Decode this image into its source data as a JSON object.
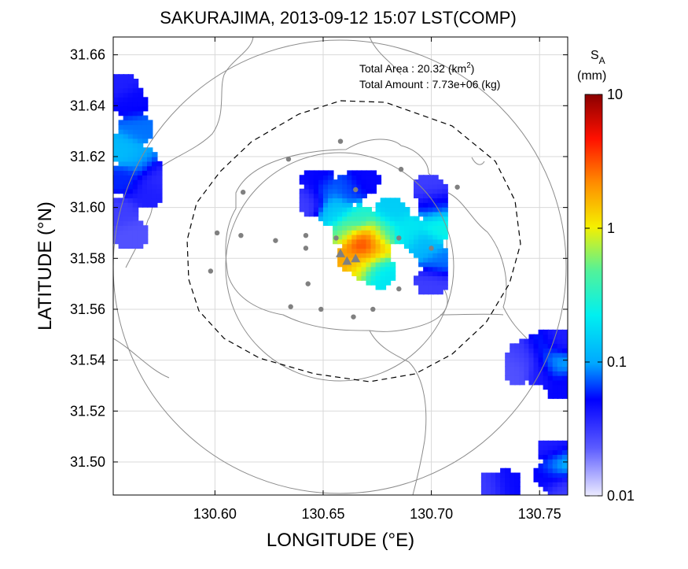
{
  "chart_data": {
    "type": "heatmap",
    "title": "SAKURAJIMA, 2013-09-12 15:07 LST(COMP)",
    "xlabel": "LONGITUDE (°E)",
    "ylabel": "LATITUDE (°N)",
    "xlim": [
      130.553,
      130.763
    ],
    "ylim": [
      31.487,
      31.667
    ],
    "xticks": [
      130.6,
      130.65,
      130.7,
      130.75
    ],
    "xtick_labels": [
      "130.60",
      "130.65",
      "130.70",
      "130.75"
    ],
    "yticks": [
      31.5,
      31.52,
      31.54,
      31.56,
      31.58,
      31.6,
      31.62,
      31.64,
      31.66
    ],
    "ytick_labels": [
      "31.50",
      "31.52",
      "31.54",
      "31.56",
      "31.58",
      "31.60",
      "31.62",
      "31.64",
      "31.66"
    ],
    "grid": true,
    "annotations": [
      {
        "label": "Total Area   : 20.32 (km",
        "sup": "2",
        "suffix": ")"
      },
      {
        "label": "Total Amount : 7.73e+06 (kg)",
        "sup": "",
        "suffix": ""
      }
    ],
    "colorbar": {
      "label_main": "S",
      "label_sub": "A",
      "unit": "(mm)",
      "scale": "log",
      "range": [
        0.01,
        10
      ],
      "ticks": [
        0.01,
        0.1,
        1,
        10
      ],
      "tick_labels": [
        "0.01",
        "0.1",
        "1",
        "10"
      ]
    },
    "vents": [
      [
        130.658,
        31.582
      ],
      [
        130.661,
        31.579
      ],
      [
        130.665,
        31.58
      ]
    ],
    "stations": [
      [
        130.658,
        31.626
      ],
      [
        130.634,
        31.619
      ],
      [
        130.686,
        31.615
      ],
      [
        130.712,
        31.608
      ],
      [
        130.613,
        31.606
      ],
      [
        130.665,
        31.607
      ],
      [
        130.601,
        31.59
      ],
      [
        130.612,
        31.589
      ],
      [
        130.628,
        31.587
      ],
      [
        130.642,
        31.589
      ],
      [
        130.656,
        31.588
      ],
      [
        130.685,
        31.588
      ],
      [
        130.7,
        31.584
      ],
      [
        130.642,
        31.584
      ],
      [
        130.598,
        31.575
      ],
      [
        130.643,
        31.57
      ],
      [
        130.685,
        31.568
      ],
      [
        130.635,
        31.561
      ],
      [
        130.649,
        31.56
      ],
      [
        130.673,
        31.56
      ],
      [
        130.664,
        31.557
      ]
    ],
    "fields": [
      {
        "name": "center",
        "cells": [
          [
            130.668,
            31.584,
            6.0
          ],
          [
            130.665,
            31.586,
            3.0
          ],
          [
            130.671,
            31.588,
            2.0
          ],
          [
            130.663,
            31.58,
            1.8
          ],
          [
            130.673,
            31.582,
            1.2
          ],
          [
            130.668,
            31.577,
            0.9
          ],
          [
            130.66,
            31.59,
            0.5
          ],
          [
            130.666,
            31.594,
            0.3
          ],
          [
            130.676,
            31.59,
            0.4
          ],
          [
            130.654,
            31.598,
            0.15
          ],
          [
            130.65,
            31.605,
            0.08
          ],
          [
            130.646,
            31.61,
            0.05
          ],
          [
            130.66,
            31.606,
            0.07
          ],
          [
            130.667,
            31.61,
            0.05
          ],
          [
            130.68,
            31.597,
            0.15
          ],
          [
            130.688,
            31.59,
            0.2
          ],
          [
            130.696,
            31.584,
            0.12
          ],
          [
            130.702,
            31.592,
            0.25
          ],
          [
            130.701,
            31.578,
            0.08
          ],
          [
            130.7,
            31.6,
            0.06
          ],
          [
            130.675,
            31.574,
            0.2
          ],
          [
            130.643,
            31.602,
            0.03
          ],
          [
            130.698,
            31.606,
            0.03
          ],
          [
            130.699,
            31.57,
            0.03
          ]
        ]
      },
      {
        "name": "northwest",
        "cells": [
          [
            130.555,
            31.648,
            0.04
          ],
          [
            130.56,
            31.64,
            0.05
          ],
          [
            130.562,
            31.63,
            0.08
          ],
          [
            130.557,
            31.622,
            0.12
          ],
          [
            130.565,
            31.617,
            0.1
          ],
          [
            130.558,
            31.61,
            0.06
          ],
          [
            130.567,
            31.605,
            0.04
          ],
          [
            130.556,
            31.597,
            0.03
          ],
          [
            130.56,
            31.588,
            0.025
          ],
          [
            130.57,
            31.612,
            0.035
          ]
        ]
      },
      {
        "name": "southeast",
        "cells": [
          [
            130.742,
            31.541,
            0.03
          ],
          [
            130.75,
            31.544,
            0.06
          ],
          [
            130.756,
            31.538,
            0.1
          ],
          [
            130.75,
            31.535,
            0.04
          ],
          [
            130.759,
            31.529,
            0.05
          ],
          [
            130.738,
            31.536,
            0.025
          ],
          [
            130.758,
            31.547,
            0.04
          ]
        ]
      },
      {
        "name": "south",
        "cells": [
          [
            130.755,
            31.504,
            0.04
          ],
          [
            130.758,
            31.498,
            0.12
          ],
          [
            130.754,
            31.494,
            0.05
          ],
          [
            130.76,
            31.489,
            0.03
          ],
          [
            130.733,
            31.49,
            0.05
          ],
          [
            130.727,
            31.489,
            0.03
          ]
        ]
      }
    ]
  },
  "colors": {
    "frame": "#000000",
    "grid": "#d9d9d9",
    "coast": "#8c8c8c",
    "ring": "#8c8c8c",
    "dashed": "#000000",
    "station": "#808080",
    "vent": "#808080"
  }
}
